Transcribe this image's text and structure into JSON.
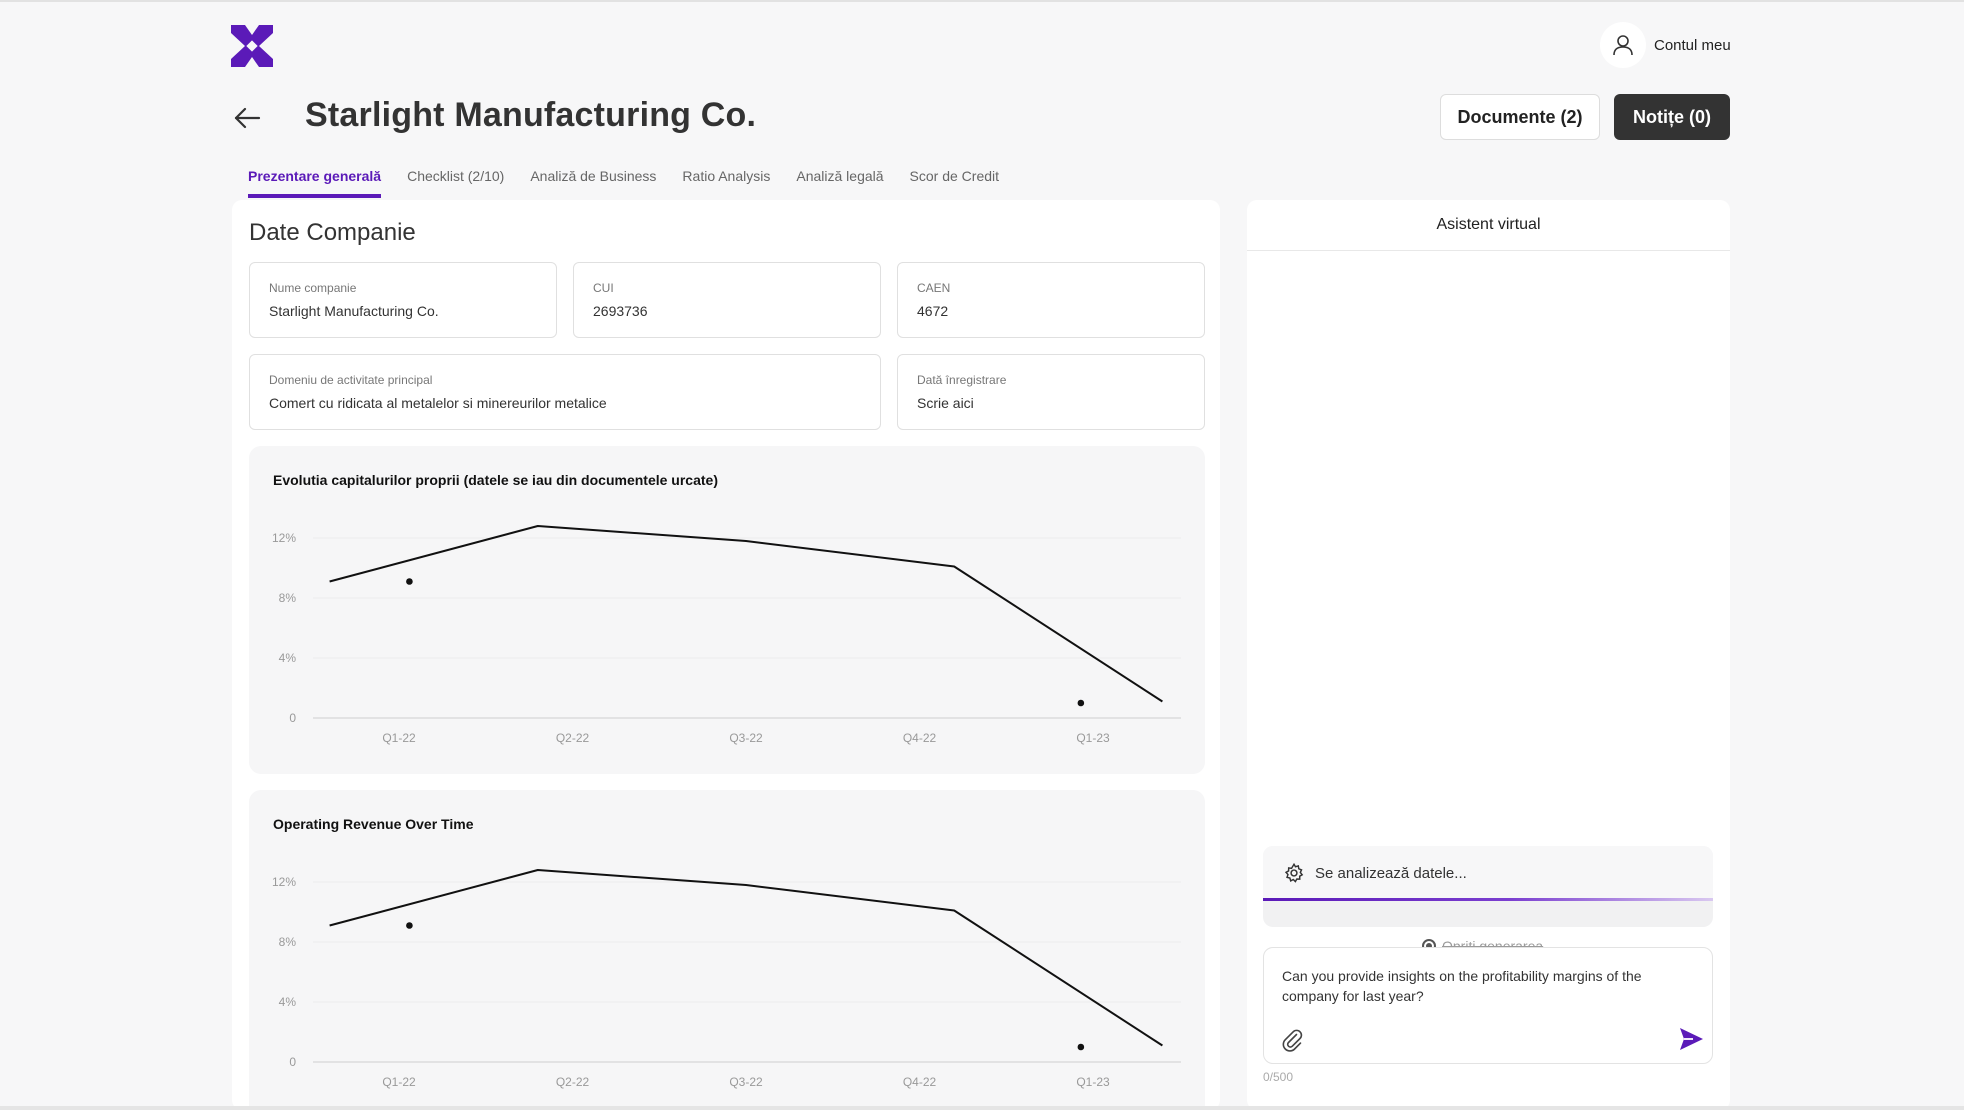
{
  "header": {
    "account_label": "Contul meu",
    "company_title": "Starlight Manufacturing Co.",
    "documents_button": "Documente (2)",
    "notes_button": "Notițe (0)"
  },
  "tabs": [
    {
      "label": "Prezentare generală",
      "active": true
    },
    {
      "label": "Checklist (2/10)"
    },
    {
      "label": "Analiză de Business"
    },
    {
      "label": "Ratio Analysis"
    },
    {
      "label": "Analiză legală"
    },
    {
      "label": "Scor de Credit"
    }
  ],
  "company": {
    "section_title": "Date Companie",
    "fields": {
      "name": {
        "label": "Nume companie",
        "value": "Starlight Manufacturing Co."
      },
      "cui": {
        "label": "CUI",
        "value": "2693736"
      },
      "caen": {
        "label": "CAEN",
        "value": "4672"
      },
      "domain": {
        "label": "Domeniu de activitate principal",
        "value": "Comert cu ridicata al metalelor si minereurilor metalice"
      },
      "reg_date": {
        "label": "Dată înregistrare",
        "value": "Scrie aici"
      }
    }
  },
  "chart_data": [
    {
      "type": "line",
      "title": "Evolutia capitalurilor proprii (datele se iau din documentele urcate)",
      "categories": [
        "Q1-22",
        "Q2-22",
        "Q3-22",
        "Q4-22",
        "Q1-23"
      ],
      "yticks": [
        "0",
        "4%",
        "8%",
        "12%"
      ],
      "ylim": [
        0,
        12
      ],
      "x": [
        -0.4,
        0.8,
        2.0,
        3.2,
        4.4
      ],
      "series": [
        {
          "values": [
            9.1,
            12.8,
            11.8,
            10.1,
            1.1
          ]
        }
      ],
      "points": [
        {
          "x": 0.06,
          "y": 9.1
        },
        {
          "x": 3.93,
          "y": 1.0
        }
      ]
    },
    {
      "type": "line",
      "title": "Operating Revenue Over Time",
      "categories": [
        "Q1-22",
        "Q2-22",
        "Q3-22",
        "Q4-22",
        "Q1-23"
      ],
      "yticks": [
        "0",
        "4%",
        "8%",
        "12%"
      ],
      "ylim": [
        0,
        12
      ],
      "x": [
        -0.4,
        0.8,
        2.0,
        3.2,
        4.4
      ],
      "series": [
        {
          "values": [
            9.1,
            12.8,
            11.8,
            10.1,
            1.1
          ]
        }
      ],
      "points": [
        {
          "x": 0.06,
          "y": 9.1
        },
        {
          "x": 3.93,
          "y": 1.0
        }
      ]
    }
  ],
  "assistant": {
    "title": "Asistent virtual",
    "status_text": "Se analizează datele...",
    "stop_label": "Opriți generarea",
    "input_text": "Can you provide insights on the profitability margins of the company for last year?",
    "counter": "0/500"
  },
  "colors": {
    "accent": "#5b1ab8",
    "dark_button": "#333333"
  }
}
